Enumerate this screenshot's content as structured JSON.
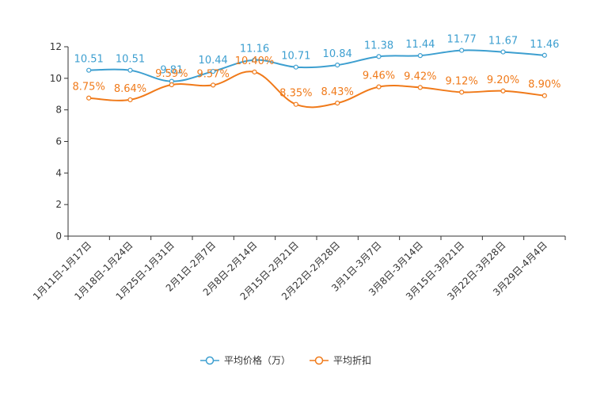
{
  "chart_data": {
    "type": "line",
    "title": "",
    "xlabel": "",
    "ylabel": "",
    "ylim": [
      0,
      12
    ],
    "yticks": [
      0,
      2,
      4,
      6,
      8,
      10,
      12
    ],
    "grid": false,
    "legend_position": "bottom-center",
    "categories": [
      "1月11日-1月17日",
      "1月18日-1月24日",
      "1月25日-1月31日",
      "2月1日-2月7日",
      "2月8日-2月14日",
      "2月15日-2月21日",
      "2月22日-2月28日",
      "3月1日-3月7日",
      "3月8日-3月14日",
      "3月15日-3月21日",
      "3月22日-3月28日",
      "3月29日-4月4日"
    ],
    "series": [
      {
        "name": "平均价格（万）",
        "color": "#3d9fd0",
        "values": [
          10.51,
          10.51,
          9.81,
          10.44,
          11.16,
          10.71,
          10.84,
          11.38,
          11.44,
          11.77,
          11.67,
          11.46
        ],
        "labels": [
          "10.51",
          "10.51",
          "9.81",
          "10.44",
          "11.16",
          "10.71",
          "10.84",
          "11.38",
          "11.44",
          "11.77",
          "11.67",
          "11.46"
        ]
      },
      {
        "name": "平均折扣",
        "color": "#f07a1a",
        "values": [
          8.75,
          8.64,
          9.59,
          9.57,
          10.4,
          8.35,
          8.43,
          9.46,
          9.42,
          9.12,
          9.2,
          8.9
        ],
        "labels": [
          "8.75%",
          "8.64%",
          "9.59%",
          "9.57%",
          "10.40%",
          "8.35%",
          "8.43%",
          "9.46%",
          "9.42%",
          "9.12%",
          "9.20%",
          "8.90%"
        ]
      }
    ]
  }
}
